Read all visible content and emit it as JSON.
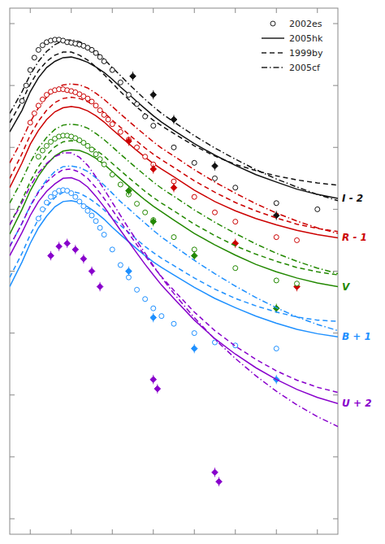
{
  "chart_data": {
    "type": "line",
    "x": [
      -15,
      -12,
      -10,
      -8,
      -6,
      -4,
      -2,
      0,
      2,
      4,
      6,
      8,
      10,
      12,
      14,
      16,
      18,
      20,
      22,
      25,
      30,
      35,
      40,
      45,
      50,
      55,
      60,
      65
    ],
    "xlim": [
      -15,
      65
    ],
    "xticks": [
      -10,
      0,
      10,
      20,
      30,
      40,
      50,
      60
    ],
    "ylim": [
      30.5,
      13.5
    ],
    "yticks": [
      14,
      16,
      18,
      20,
      22,
      24,
      26,
      28,
      30
    ],
    "tick_labels": false,
    "grid": false,
    "legend": "upper right",
    "legend_entries": [
      "2002es",
      "2005hk",
      "1999by",
      "2005cf"
    ],
    "bands": [
      {
        "label": "I - 2",
        "color": "#111111",
        "series": [
          {
            "name": "2005hk",
            "type": "line",
            "line_style": "solid",
            "values": [
              17.5,
              16.8,
              16.2,
              15.75,
              15.42,
              15.22,
              15.1,
              15.08,
              15.15,
              15.25,
              15.4,
              15.58,
              15.8,
              16.05,
              16.28,
              16.52,
              16.75,
              16.98,
              17.18,
              17.45,
              17.88,
              18.25,
              18.58,
              18.88,
              19.12,
              19.35,
              19.52,
              19.65
            ]
          },
          {
            "name": "1999by",
            "type": "line",
            "line_style": "dashed",
            "values": [
              17.2,
              16.5,
              15.95,
              15.52,
              15.22,
              15.02,
              14.92,
              14.92,
              15.02,
              15.18,
              15.4,
              15.65,
              15.92,
              16.2,
              16.45,
              16.7,
              16.92,
              17.12,
              17.3,
              17.55,
              17.95,
              18.28,
              18.55,
              18.75,
              18.92,
              19.05,
              19.15,
              19.22
            ]
          },
          {
            "name": "2005cf",
            "type": "line",
            "line_style": "dashdot",
            "values": [
              16.9,
              16.2,
              15.65,
              15.22,
              14.9,
              14.68,
              14.55,
              14.52,
              14.58,
              14.72,
              14.92,
              15.15,
              15.42,
              15.68,
              15.95,
              16.2,
              16.45,
              16.68,
              16.9,
              17.18,
              17.62,
              18.02,
              18.38,
              18.72,
              19.02,
              19.28,
              19.52,
              19.72
            ]
          },
          {
            "name": "2002es",
            "type": "scatter",
            "marker": "circle",
            "error": 0.08,
            "x": [
              -12,
              -11,
              -10,
              -9,
              -8,
              -7,
              -6,
              -5,
              -4,
              -3,
              -2,
              -1,
              0,
              1,
              2,
              3,
              4,
              5,
              6,
              7,
              8,
              10,
              12,
              14,
              16,
              18,
              20,
              25,
              30,
              35,
              40,
              50,
              60
            ],
            "values": [
              16.5,
              16.0,
              15.5,
              15.1,
              14.85,
              14.7,
              14.6,
              14.55,
              14.52,
              14.52,
              14.55,
              14.6,
              14.62,
              14.65,
              14.68,
              14.72,
              14.78,
              14.85,
              14.95,
              15.08,
              15.22,
              15.5,
              15.9,
              16.3,
              16.6,
              17.0,
              17.3,
              18.0,
              18.5,
              19.0,
              19.3,
              19.8,
              20.0
            ]
          },
          {
            "type": "scatter",
            "marker": "diamond",
            "error": 0.15,
            "x": [
              15,
              20,
              25,
              35,
              50
            ],
            "values": [
              15.7,
              16.3,
              17.1,
              18.6,
              20.2
            ]
          }
        ]
      },
      {
        "label": "R - 1",
        "color": "#cc0000",
        "series": [
          {
            "name": "2005hk",
            "type": "line",
            "line_style": "solid",
            "values": [
              19.3,
              18.5,
              17.9,
              17.45,
              17.1,
              16.85,
              16.72,
              16.68,
              16.72,
              16.82,
              16.98,
              17.18,
              17.42,
              17.65,
              17.88,
              18.1,
              18.32,
              18.52,
              18.7,
              18.95,
              19.38,
              19.75,
              20.05,
              20.3,
              20.5,
              20.68,
              20.82,
              20.92
            ]
          },
          {
            "name": "1999by",
            "type": "line",
            "line_style": "dashed",
            "values": [
              19.0,
              18.2,
              17.6,
              17.15,
              16.8,
              16.55,
              16.42,
              16.38,
              16.42,
              16.52,
              16.68,
              16.88,
              17.12,
              17.35,
              17.58,
              17.8,
              18.02,
              18.22,
              18.4,
              18.65,
              19.08,
              19.45,
              19.78,
              20.05,
              20.28,
              20.48,
              20.62,
              20.72
            ]
          },
          {
            "name": "2005cf",
            "type": "line",
            "line_style": "dashdot",
            "values": [
              18.5,
              17.75,
              17.18,
              16.72,
              16.38,
              16.12,
              15.98,
              15.95,
              15.98,
              16.08,
              16.25,
              16.45,
              16.68,
              16.92,
              17.15,
              17.38,
              17.6,
              17.82,
              18.02,
              18.28,
              18.72,
              19.12,
              19.48,
              19.82,
              20.12,
              20.38,
              20.6,
              20.78
            ]
          },
          {
            "name": "2002es",
            "type": "scatter",
            "marker": "circle",
            "error": 0.08,
            "x": [
              -10,
              -9,
              -8,
              -7,
              -6,
              -5,
              -4,
              -3,
              -2,
              -1,
              0,
              1,
              2,
              3,
              4,
              5,
              6,
              7,
              8,
              9,
              10,
              12,
              14,
              16,
              18,
              20,
              25,
              30,
              35,
              40,
              50,
              55
            ],
            "values": [
              17.2,
              16.9,
              16.65,
              16.45,
              16.3,
              16.2,
              16.15,
              16.12,
              16.12,
              16.15,
              16.18,
              16.22,
              16.28,
              16.35,
              16.42,
              16.52,
              16.65,
              16.8,
              16.95,
              17.1,
              17.25,
              17.5,
              17.75,
              18,
              18.3,
              18.55,
              19.1,
              19.6,
              20.1,
              20.4,
              20.9,
              21
            ]
          },
          {
            "type": "scatter",
            "marker": "diamond",
            "error": 0.15,
            "x": [
              14,
              20,
              25,
              40,
              55
            ],
            "values": [
              17.8,
              18.7,
              19.3,
              21.1,
              22.5
            ]
          }
        ]
      },
      {
        "label": "V",
        "color": "#228800",
        "series": [
          {
            "name": "2005hk",
            "type": "line",
            "line_style": "solid",
            "values": [
              20.8,
              20.0,
              19.4,
              18.92,
              18.55,
              18.28,
              18.12,
              18.08,
              18.1,
              18.2,
              18.35,
              18.55,
              18.78,
              19.02,
              19.25,
              19.48,
              19.7,
              19.9,
              20.08,
              20.35,
              20.78,
              21.15,
              21.48,
              21.78,
              22.02,
              22.22,
              22.38,
              22.5
            ]
          },
          {
            "name": "1999by",
            "type": "line",
            "line_style": "dashed",
            "values": [
              20.5,
              19.7,
              19.1,
              18.62,
              18.25,
              17.98,
              17.82,
              17.78,
              17.82,
              17.92,
              18.08,
              18.28,
              18.52,
              18.75,
              18.98,
              19.2,
              19.42,
              19.62,
              19.8,
              20.05,
              20.48,
              20.85,
              21.18,
              21.45,
              21.68,
              21.88,
              22.02,
              22.12
            ]
          },
          {
            "name": "2005cf",
            "type": "line",
            "line_style": "dashdot",
            "values": [
              19.8,
              19.05,
              18.48,
              18.02,
              17.68,
              17.42,
              17.28,
              17.25,
              17.28,
              17.38,
              17.55,
              17.75,
              17.98,
              18.22,
              18.45,
              18.68,
              18.9,
              19.12,
              19.32,
              19.58,
              20.02,
              20.42,
              20.78,
              21.12,
              21.42,
              21.68,
              21.9,
              22.08
            ]
          },
          {
            "name": "2002es",
            "type": "scatter",
            "marker": "circle",
            "error": 0.08,
            "x": [
              -8,
              -7,
              -6,
              -5,
              -4,
              -3,
              -2,
              -1,
              0,
              1,
              2,
              3,
              4,
              5,
              6,
              7,
              8,
              10,
              12,
              14,
              16,
              18,
              20,
              25,
              30,
              40,
              50,
              55
            ],
            "values": [
              18.3,
              18.1,
              17.95,
              17.82,
              17.72,
              17.65,
              17.62,
              17.62,
              17.65,
              17.7,
              17.77,
              17.85,
              17.95,
              18.07,
              18.22,
              18.38,
              18.55,
              18.88,
              19.2,
              19.52,
              19.82,
              20.1,
              20.35,
              20.9,
              21.3,
              21.9,
              22.3,
              22.4
            ]
          },
          {
            "type": "scatter",
            "marker": "diamond",
            "error": 0.15,
            "x": [
              14,
              20,
              30,
              50
            ],
            "values": [
              19.4,
              20.4,
              21.5,
              23.2
            ]
          }
        ]
      },
      {
        "label": "B + 1",
        "color": "#1e90ff",
        "series": [
          {
            "name": "2005hk",
            "type": "line",
            "line_style": "solid",
            "values": [
              22.5,
              21.7,
              21.1,
              20.6,
              20.22,
              19.92,
              19.75,
              19.72,
              19.78,
              19.92,
              20.1,
              20.32,
              20.58,
              20.82,
              21.05,
              21.28,
              21.5,
              21.7,
              21.88,
              22.12,
              22.52,
              22.88,
              23.18,
              23.45,
              23.68,
              23.88,
              24.02,
              24.12
            ]
          },
          {
            "name": "1999by",
            "type": "line",
            "line_style": "dashed",
            "values": [
              22.2,
              21.42,
              20.82,
              20.32,
              19.92,
              19.62,
              19.45,
              19.42,
              19.48,
              19.62,
              19.8,
              20.02,
              20.28,
              20.52,
              20.75,
              20.98,
              21.2,
              21.4,
              21.58,
              21.82,
              22.22,
              22.58,
              22.88,
              23.12,
              23.32,
              23.48,
              23.58,
              23.62
            ]
          },
          {
            "name": "2005cf",
            "type": "line",
            "line_style": "dashdot",
            "values": [
              21.2,
              20.45,
              19.88,
              19.42,
              19.05,
              18.78,
              18.62,
              18.6,
              18.65,
              18.78,
              18.98,
              19.22,
              19.48,
              19.75,
              19.98,
              20.22,
              20.45,
              20.68,
              20.9,
              21.18,
              21.65,
              22.08,
              22.48,
              22.85,
              23.18,
              23.48,
              23.72,
              23.92
            ]
          },
          {
            "name": "2002es",
            "type": "scatter",
            "marker": "circle",
            "error": 0.08,
            "x": [
              -8,
              -7,
              -6,
              -5,
              -4,
              -3,
              -2,
              -1,
              0,
              1,
              2,
              3,
              4,
              5,
              6,
              7,
              8,
              10,
              12,
              14,
              16,
              18,
              20,
              22,
              25,
              30,
              35,
              40,
              50
            ],
            "values": [
              20.3,
              20,
              19.78,
              19.6,
              19.48,
              19.4,
              19.38,
              19.4,
              19.48,
              19.6,
              19.75,
              19.9,
              20.05,
              20.2,
              20.38,
              20.6,
              20.82,
              21.3,
              21.8,
              22.2,
              22.6,
              22.9,
              23.2,
              23.45,
              23.7,
              24,
              24.3,
              24.4,
              24.5
            ]
          },
          {
            "type": "scatter",
            "marker": "diamond",
            "error": 0.15,
            "x": [
              14,
              20,
              30,
              50
            ],
            "values": [
              22,
              23.5,
              24.5,
              25.5
            ]
          }
        ]
      },
      {
        "label": "U + 2",
        "color": "#8800cc",
        "series": [
          {
            "name": "2005hk",
            "type": "line",
            "line_style": "solid",
            "values": [
              21.5,
              20.75,
              20.2,
              19.75,
              19.42,
              19.18,
              19.0,
              18.98,
              19.08,
              19.28,
              19.58,
              19.92,
              20.3,
              20.68,
              21.05,
              21.42,
              21.78,
              22.12,
              22.45,
              22.88,
              23.58,
              24.18,
              24.68,
              25.12,
              25.5,
              25.82,
              26.08,
              26.28
            ]
          },
          {
            "name": "1999by",
            "type": "line",
            "line_style": "dashed",
            "values": [
              21.2,
              20.45,
              19.9,
              19.45,
              19.12,
              18.88,
              18.72,
              18.7,
              18.8,
              19.0,
              19.3,
              19.65,
              20.02,
              20.4,
              20.78,
              21.15,
              21.5,
              21.85,
              22.18,
              22.62,
              23.32,
              23.92,
              24.42,
              24.85,
              25.22,
              25.52,
              25.75,
              25.92
            ]
          },
          {
            "name": "2005cf",
            "type": "line",
            "line_style": "dashdot",
            "values": [
              20.5,
              19.78,
              19.25,
              18.82,
              18.52,
              18.3,
              18.18,
              18.18,
              18.32,
              18.58,
              18.95,
              19.35,
              19.78,
              20.2,
              20.62,
              21.02,
              21.42,
              21.82,
              22.2,
              22.72,
              23.5,
              24.2,
              24.82,
              25.38,
              25.88,
              26.32,
              26.7,
              27.02
            ]
          },
          {
            "type": "scatter",
            "marker": "diamond",
            "error": 0.15,
            "x": [
              -5,
              -3,
              -1,
              1,
              3,
              5,
              7,
              20,
              21,
              35,
              36
            ],
            "values": [
              21.5,
              21.2,
              21.1,
              21.3,
              21.6,
              22,
              22.5,
              25.5,
              25.8,
              28.5,
              28.8
            ]
          }
        ]
      }
    ]
  }
}
